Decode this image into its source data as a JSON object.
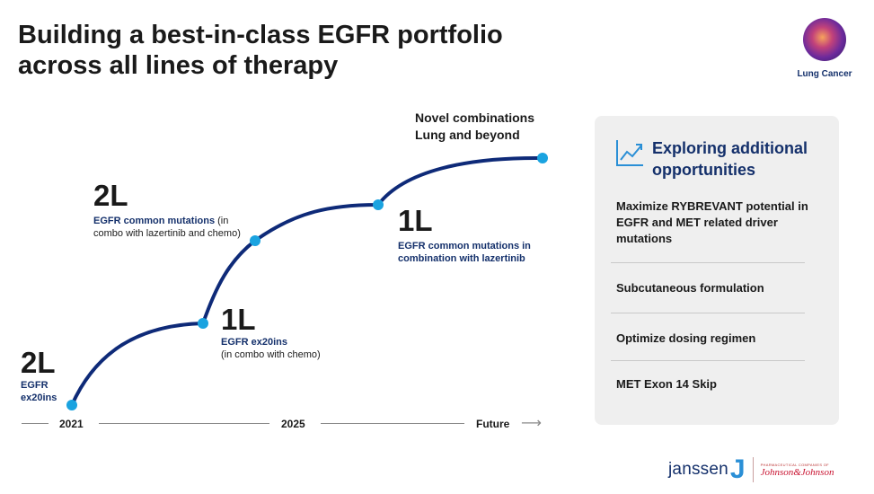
{
  "title": {
    "line1": "Building a best-in-class EGFR portfolio",
    "line2": "across all lines of therapy"
  },
  "badge": {
    "label": "Lung Cancer"
  },
  "stages": [
    {
      "line": "2L",
      "detail_bold": "EGFR\nex20ins",
      "detail": ""
    },
    {
      "line": "1L",
      "detail_bold": "EGFR ex20ins",
      "detail": "(in combo with chemo)"
    },
    {
      "line": "2L",
      "detail_bold": "EGFR common mutations",
      "detail": " (in combo with lazertinib and chemo)"
    },
    {
      "line": "1L",
      "detail_bold": "EGFR common mutations in combination with lazertinib",
      "detail": ""
    }
  ],
  "novel": {
    "line1": "Novel combinations",
    "line2": "Lung and beyond"
  },
  "timeline": {
    "start": "2021",
    "mid": "2025",
    "end": "Future",
    "arrow": "⟶"
  },
  "panel": {
    "title": "Exploring additional opportunities",
    "icon": "trend-chart-icon",
    "items": [
      "Maximize RYBREVANT potential in EGFR and MET related driver mutations",
      "Subcutaneous formulation",
      "Optimize dosing regimen",
      "MET Exon 14 Skip"
    ]
  },
  "logo": {
    "company": "janssen",
    "tagline": "PHARMACEUTICAL COMPANIES OF",
    "parent": "Johnson&Johnson"
  },
  "colors": {
    "curve": "#0e2a78",
    "dot": "#1aa3e0",
    "accent": "#14306b",
    "panel_bg": "#efefef"
  }
}
